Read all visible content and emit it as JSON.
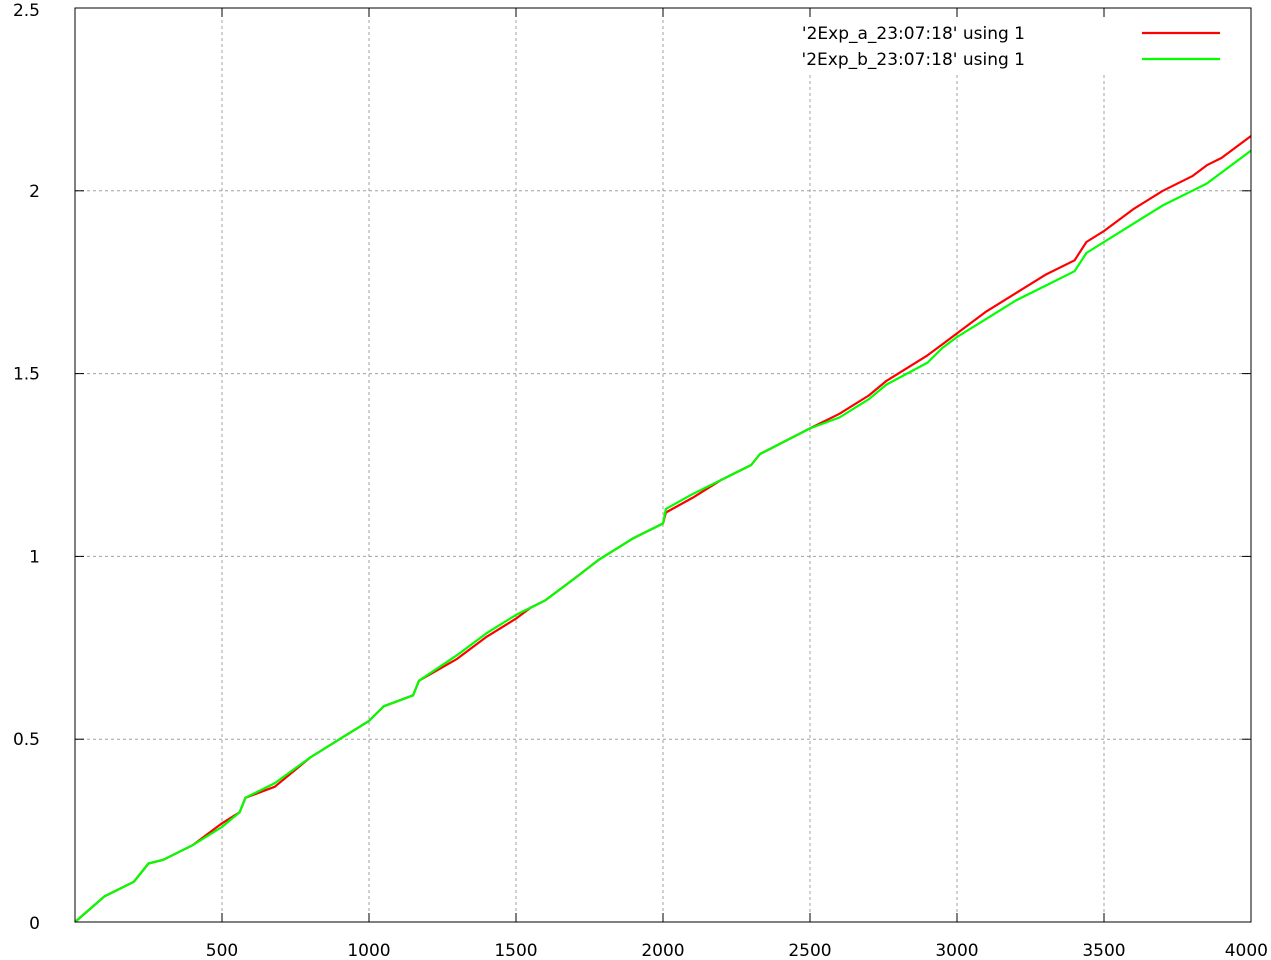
{
  "chart_data": {
    "type": "line",
    "title": "",
    "xlabel": "",
    "ylabel": "",
    "xlim": [
      0,
      4000
    ],
    "ylim": [
      0,
      2.5
    ],
    "grid": true,
    "legend_position": "top-right",
    "x_ticks": [
      {
        "value": 500,
        "label": "500"
      },
      {
        "value": 1000,
        "label": "1000"
      },
      {
        "value": 1500,
        "label": "1500"
      },
      {
        "value": 2000,
        "label": "2000"
      },
      {
        "value": 2500,
        "label": "2500"
      },
      {
        "value": 3000,
        "label": "3000"
      },
      {
        "value": 3500,
        "label": "3500"
      },
      {
        "value": 4000,
        "label": "4000"
      }
    ],
    "y_ticks": [
      {
        "value": 0,
        "label": "0"
      },
      {
        "value": 0.5,
        "label": "0.5"
      },
      {
        "value": 1,
        "label": "1"
      },
      {
        "value": 1.5,
        "label": "1.5"
      },
      {
        "value": 2,
        "label": "2"
      },
      {
        "value": 2.5,
        "label": "2.5"
      }
    ],
    "series": [
      {
        "name": "'2Exp_a_23:07:18' using 1",
        "color": "#ff0000",
        "points": [
          [
            0,
            0
          ],
          [
            100,
            0.07
          ],
          [
            200,
            0.11
          ],
          [
            250,
            0.16
          ],
          [
            300,
            0.17
          ],
          [
            400,
            0.21
          ],
          [
            500,
            0.27
          ],
          [
            560,
            0.3
          ],
          [
            580,
            0.34
          ],
          [
            680,
            0.37
          ],
          [
            800,
            0.45
          ],
          [
            900,
            0.5
          ],
          [
            1000,
            0.55
          ],
          [
            1050,
            0.59
          ],
          [
            1150,
            0.62
          ],
          [
            1170,
            0.66
          ],
          [
            1300,
            0.72
          ],
          [
            1400,
            0.78
          ],
          [
            1500,
            0.83
          ],
          [
            1550,
            0.86
          ],
          [
            1600,
            0.88
          ],
          [
            1700,
            0.94
          ],
          [
            1780,
            0.99
          ],
          [
            1900,
            1.05
          ],
          [
            2000,
            1.09
          ],
          [
            2010,
            1.12
          ],
          [
            2100,
            1.16
          ],
          [
            2200,
            1.21
          ],
          [
            2300,
            1.25
          ],
          [
            2330,
            1.28
          ],
          [
            2500,
            1.35
          ],
          [
            2600,
            1.39
          ],
          [
            2700,
            1.44
          ],
          [
            2760,
            1.48
          ],
          [
            2900,
            1.55
          ],
          [
            2950,
            1.58
          ],
          [
            3000,
            1.61
          ],
          [
            3100,
            1.67
          ],
          [
            3200,
            1.72
          ],
          [
            3300,
            1.77
          ],
          [
            3400,
            1.81
          ],
          [
            3440,
            1.86
          ],
          [
            3500,
            1.89
          ],
          [
            3600,
            1.95
          ],
          [
            3700,
            2.0
          ],
          [
            3800,
            2.04
          ],
          [
            3850,
            2.07
          ],
          [
            3900,
            2.09
          ],
          [
            4000,
            2.15
          ]
        ]
      },
      {
        "name": "'2Exp_b_23:07:18' using 1",
        "color": "#00ff00",
        "points": [
          [
            0,
            0
          ],
          [
            100,
            0.07
          ],
          [
            200,
            0.11
          ],
          [
            250,
            0.16
          ],
          [
            300,
            0.17
          ],
          [
            400,
            0.21
          ],
          [
            500,
            0.26
          ],
          [
            560,
            0.3
          ],
          [
            580,
            0.34
          ],
          [
            680,
            0.38
          ],
          [
            800,
            0.45
          ],
          [
            900,
            0.5
          ],
          [
            1000,
            0.55
          ],
          [
            1050,
            0.59
          ],
          [
            1150,
            0.62
          ],
          [
            1170,
            0.66
          ],
          [
            1300,
            0.73
          ],
          [
            1400,
            0.79
          ],
          [
            1500,
            0.84
          ],
          [
            1550,
            0.86
          ],
          [
            1600,
            0.88
          ],
          [
            1700,
            0.94
          ],
          [
            1780,
            0.99
          ],
          [
            1900,
            1.05
          ],
          [
            2000,
            1.09
          ],
          [
            2010,
            1.13
          ],
          [
            2100,
            1.17
          ],
          [
            2200,
            1.21
          ],
          [
            2300,
            1.25
          ],
          [
            2330,
            1.28
          ],
          [
            2500,
            1.35
          ],
          [
            2600,
            1.38
          ],
          [
            2700,
            1.43
          ],
          [
            2760,
            1.47
          ],
          [
            2900,
            1.53
          ],
          [
            2950,
            1.57
          ],
          [
            3000,
            1.6
          ],
          [
            3100,
            1.65
          ],
          [
            3200,
            1.7
          ],
          [
            3300,
            1.74
          ],
          [
            3400,
            1.78
          ],
          [
            3440,
            1.83
          ],
          [
            3500,
            1.86
          ],
          [
            3600,
            1.91
          ],
          [
            3700,
            1.96
          ],
          [
            3800,
            2.0
          ],
          [
            3850,
            2.02
          ],
          [
            3900,
            2.05
          ],
          [
            4000,
            2.11
          ]
        ]
      }
    ]
  }
}
